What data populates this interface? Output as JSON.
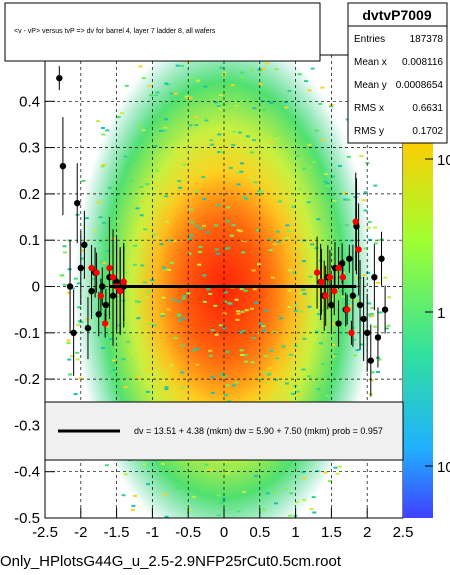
{
  "chart_data": {
    "type": "scatter",
    "title": "<v - vP>       versus  tvP =>  dv for barrel 4, layer 7 ladder 8, all wafers",
    "xlabel": "",
    "ylabel": "",
    "xlim": [
      -2.5,
      2.5
    ],
    "ylim": [
      -0.5,
      0.5
    ],
    "x_ticks": [
      "-2.5",
      "-2",
      "-1.5",
      "-1",
      "-0.5",
      "0",
      "0.5",
      "1",
      "1.5",
      "2",
      "2.5"
    ],
    "y_ticks": [
      "-0.5",
      "-0.4",
      "-0.3",
      "-0.2",
      "-0.1",
      "0",
      "0.1",
      "0.2",
      "0.3",
      "0.4"
    ],
    "colorbar_ticks": [
      "10",
      "1",
      "10"
    ],
    "grid": true,
    "series": [
      {
        "name": "black profile",
        "color": "#000000",
        "points": [
          {
            "x": -2.3,
            "y": 0.45
          },
          {
            "x": -2.25,
            "y": 0.26
          },
          {
            "x": -2.15,
            "y": 0.0
          },
          {
            "x": -2.1,
            "y": -0.1
          },
          {
            "x": -2.05,
            "y": 0.18
          },
          {
            "x": -2.0,
            "y": 0.04
          },
          {
            "x": -1.95,
            "y": 0.09
          },
          {
            "x": -1.9,
            "y": -0.09
          },
          {
            "x": -1.85,
            "y": -0.01
          },
          {
            "x": -1.8,
            "y": 0.03
          },
          {
            "x": -1.75,
            "y": -0.06
          },
          {
            "x": -1.7,
            "y": 0.0
          },
          {
            "x": -1.65,
            "y": -0.04
          },
          {
            "x": -1.6,
            "y": 0.02
          },
          {
            "x": -1.55,
            "y": -0.02
          },
          {
            "x": -1.5,
            "y": 0.01
          },
          {
            "x": -1.45,
            "y": -0.01
          },
          {
            "x": -1.4,
            "y": 0.0
          },
          {
            "x": 1.35,
            "y": 0.01
          },
          {
            "x": 1.4,
            "y": -0.02
          },
          {
            "x": 1.45,
            "y": 0.02
          },
          {
            "x": 1.5,
            "y": -0.04
          },
          {
            "x": 1.55,
            "y": 0.04
          },
          {
            "x": 1.6,
            "y": -0.08
          },
          {
            "x": 1.65,
            "y": 0.05
          },
          {
            "x": 1.7,
            "y": -0.05
          },
          {
            "x": 1.75,
            "y": 0.06
          },
          {
            "x": 1.8,
            "y": -0.02
          },
          {
            "x": 1.85,
            "y": 0.13
          },
          {
            "x": 1.9,
            "y": -0.04
          },
          {
            "x": 1.95,
            "y": -0.07
          },
          {
            "x": 2.0,
            "y": -0.1
          },
          {
            "x": 2.05,
            "y": -0.16
          },
          {
            "x": 2.1,
            "y": 0.02
          },
          {
            "x": 2.15,
            "y": -0.11
          },
          {
            "x": 2.2,
            "y": 0.06
          },
          {
            "x": 2.25,
            "y": -0.05
          }
        ]
      },
      {
        "name": "red profile",
        "color": "#ff0000",
        "points": [
          {
            "x": -1.85,
            "y": 0.04
          },
          {
            "x": -1.78,
            "y": 0.03
          },
          {
            "x": -1.72,
            "y": -0.02
          },
          {
            "x": -1.66,
            "y": -0.08
          },
          {
            "x": -1.6,
            "y": 0.04
          },
          {
            "x": -1.55,
            "y": 0.02
          },
          {
            "x": -1.5,
            "y": 0.0
          },
          {
            "x": -1.45,
            "y": -0.01
          },
          {
            "x": -1.4,
            "y": 0.01
          },
          {
            "x": 1.3,
            "y": 0.03
          },
          {
            "x": 1.36,
            "y": 0.01
          },
          {
            "x": 1.42,
            "y": -0.02
          },
          {
            "x": 1.48,
            "y": 0.02
          },
          {
            "x": 1.54,
            "y": -0.01
          },
          {
            "x": 1.6,
            "y": 0.04
          },
          {
            "x": 1.66,
            "y": 0.02
          },
          {
            "x": 1.72,
            "y": -0.05
          },
          {
            "x": 1.78,
            "y": -0.1
          },
          {
            "x": 1.84,
            "y": 0.14
          },
          {
            "x": 1.88,
            "y": 0.08
          }
        ]
      }
    ],
    "fit_line": {
      "x_range": [
        -1.6,
        1.85
      ],
      "y": 0.0,
      "color": "#000000"
    },
    "legend": {
      "text": "dv =   13.51 +   4.38 (mkm) dw =    5.90 +  7.50 (mkm) prob = 0.957",
      "placement": "lower-middle"
    },
    "stats_box": {
      "title": "dvtvP7009",
      "rows": [
        {
          "label": "Entries",
          "value": "187378"
        },
        {
          "label": "Mean x",
          "value": "0.008116"
        },
        {
          "label": "Mean y",
          "value": "0.0008654"
        },
        {
          "label": "RMS x",
          "value": "0.6631"
        },
        {
          "label": "RMS y",
          "value": "0.1702"
        }
      ]
    },
    "footer": "Only_HPlotsG44G_u_2.5-2.9NFP25rCut0.5cm.root"
  }
}
